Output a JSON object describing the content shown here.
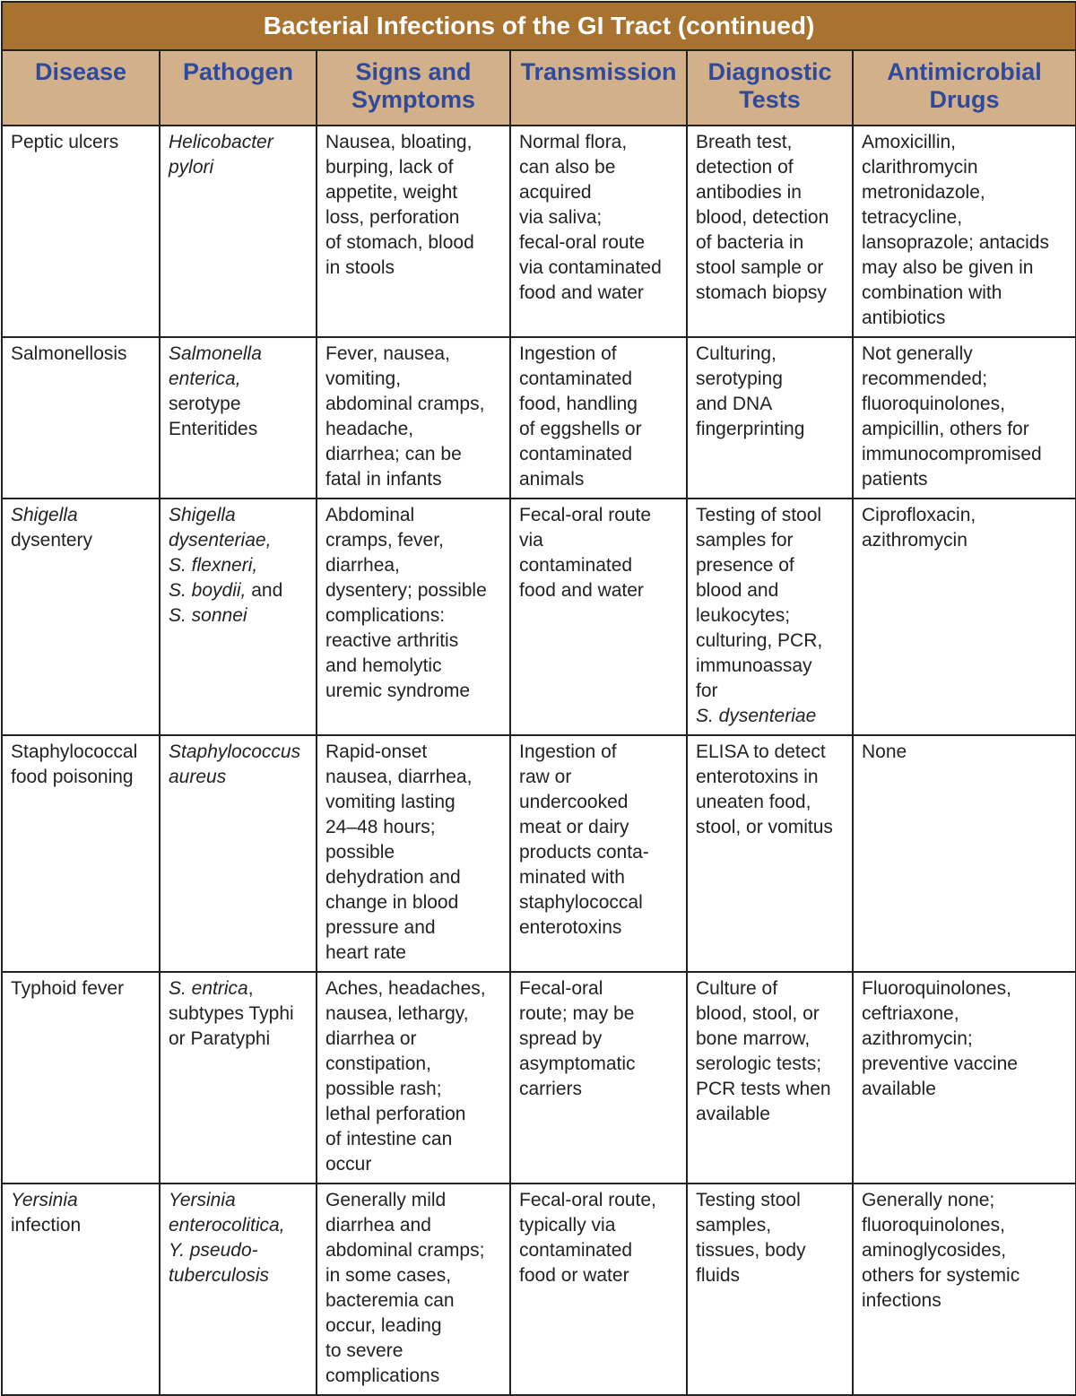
{
  "title": "Bacterial Infections of the GI Tract (continued)",
  "colors": {
    "title_bg": "#a8722f",
    "header_bg": "#d2b08a",
    "header_text": "#2f4a9c"
  },
  "columns": [
    "Disease",
    "Pathogen",
    "Signs and\nSymptoms",
    "Transmission",
    "Diagnostic\nTests",
    "Antimicrobial\nDrugs"
  ],
  "rows": [
    [
      [
        {
          "t": "Peptic ulcers"
        }
      ],
      [
        {
          "t": "Helicobacter\npylori",
          "i": true
        }
      ],
      [
        {
          "t": "Nausea, bloating,\nburping, lack of\nappetite, weight\nloss, perforation\nof stomach, blood\nin stools"
        }
      ],
      [
        {
          "t": "Normal flora,\ncan also be\nacquired\nvia saliva;\nfecal-oral route\nvia contaminated\nfood and water"
        }
      ],
      [
        {
          "t": "Breath test,\ndetection of\nantibodies in\nblood, detection\nof bacteria in\nstool sample or\nstomach biopsy"
        }
      ],
      [
        {
          "t": "Amoxicillin,\nclarithromycin\nmetronidazole,\ntetracycline,\nlansoprazole; antacids\nmay also be given in\ncombination with\nantibiotics"
        }
      ]
    ],
    [
      [
        {
          "t": "Salmonellosis"
        }
      ],
      [
        {
          "t": "Salmonella\nenterica,",
          "i": true
        },
        {
          "t": "\nserotype\nEnteritides"
        }
      ],
      [
        {
          "t": "Fever, nausea,\nvomiting,\nabdominal cramps,\nheadache,\ndiarrhea; can be\nfatal in infants"
        }
      ],
      [
        {
          "t": "Ingestion of\ncontaminated\nfood, handling\nof eggshells or\ncontaminated\nanimals"
        }
      ],
      [
        {
          "t": "Culturing,\nserotyping\nand DNA\nfingerprinting"
        }
      ],
      [
        {
          "t": "Not generally\nrecommended;\nfluoroquinolones,\nampicillin, others for\nimmunocompromised\npatients"
        }
      ]
    ],
    [
      [
        {
          "t": "Shigella",
          "i": true
        },
        {
          "t": "\ndysentery"
        }
      ],
      [
        {
          "t": "Shigella\ndysenteriae,\nS. flexneri,\nS. boydii,",
          "i": true
        },
        {
          "t": " and\n"
        },
        {
          "t": "S. sonnei",
          "i": true
        }
      ],
      [
        {
          "t": "Abdominal\ncramps, fever,\ndiarrhea,\ndysentery; possible\ncomplications:\nreactive arthritis\nand hemolytic\nuremic syndrome"
        }
      ],
      [
        {
          "t": "Fecal-oral route\nvia\ncontaminated\nfood and water"
        }
      ],
      [
        {
          "t": "Testing of stool\nsamples for\npresence of\nblood and\nleukocytes;\nculturing, PCR,\nimmunoassay\nfor\n"
        },
        {
          "t": "S. dysenteriae",
          "i": true
        }
      ],
      [
        {
          "t": "Ciprofloxacin,\nazithromycin"
        }
      ]
    ],
    [
      [
        {
          "t": "Staphylococcal\nfood poisoning"
        }
      ],
      [
        {
          "t": "Staphylococcus\naureus",
          "i": true
        }
      ],
      [
        {
          "t": "Rapid-onset\nnausea, diarrhea,\nvomiting lasting\n24–48 hours;\npossible\ndehydration and\nchange in blood\npressure and\nheart rate"
        }
      ],
      [
        {
          "t": "Ingestion of\nraw or\nundercooked\nmeat or dairy\nproducts conta-\nminated with\nstaphylococcal\nenterotoxins"
        }
      ],
      [
        {
          "t": "ELISA to detect\nenterotoxins in\nuneaten food,\nstool, or vomitus"
        }
      ],
      [
        {
          "t": "None"
        }
      ]
    ],
    [
      [
        {
          "t": "Typhoid fever"
        }
      ],
      [
        {
          "t": "S. entrica",
          "i": true
        },
        {
          "t": ",\nsubtypes Typhi\nor Paratyphi"
        }
      ],
      [
        {
          "t": "Aches, headaches,\nnausea, lethargy,\ndiarrhea or\nconstipation,\npossible rash;\nlethal perforation\nof intestine can\noccur"
        }
      ],
      [
        {
          "t": "Fecal-oral\nroute; may be\nspread by\nasymptomatic\ncarriers"
        }
      ],
      [
        {
          "t": "Culture of\nblood, stool, or\nbone marrow,\nserologic tests;\nPCR tests when\navailable"
        }
      ],
      [
        {
          "t": "Fluoroquinolones,\nceftriaxone,\nazithromycin;\npreventive vaccine\navailable"
        }
      ]
    ],
    [
      [
        {
          "t": "Yersinia",
          "i": true
        },
        {
          "t": "\ninfection"
        }
      ],
      [
        {
          "t": "Yersinia\nenterocolitica,\nY. pseudo-\ntuberculosis",
          "i": true
        }
      ],
      [
        {
          "t": "Generally mild\ndiarrhea and\nabdominal cramps;\nin some cases,\nbacteremia can\noccur, leading\nto severe\ncomplications"
        }
      ],
      [
        {
          "t": "Fecal-oral route,\ntypically via\ncontaminated\nfood or water"
        }
      ],
      [
        {
          "t": "Testing stool\nsamples,\ntissues, body\nfluids"
        }
      ],
      [
        {
          "t": "Generally none;\nfluoroquinolones,\naminoglycosides,\nothers for systemic\ninfections"
        }
      ]
    ]
  ]
}
